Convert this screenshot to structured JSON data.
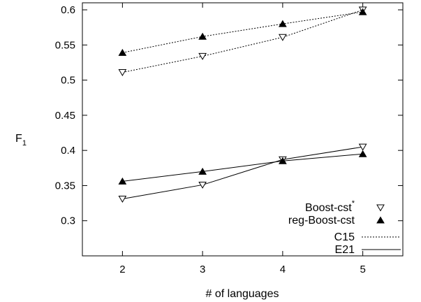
{
  "chart_data": {
    "type": "line",
    "xlabel": "# of languages",
    "ylabel": "F",
    "ylabel_subscript": "1",
    "xlim": [
      1.5,
      5.5
    ],
    "ylim": [
      0.25,
      0.61
    ],
    "x_ticks": [
      2,
      3,
      4,
      5
    ],
    "y_ticks": [
      0.3,
      0.35,
      0.4,
      0.45,
      0.5,
      0.55,
      0.6
    ],
    "y_tick_labels": [
      "0.3",
      "0.35",
      "0.4",
      "0.45",
      "0.5",
      "0.55",
      "0.6"
    ],
    "grid": false,
    "legend_position": "bottom-right",
    "legend": {
      "markers": [
        {
          "label": "Boost-cst",
          "superscript": "*",
          "marker": "triangle-down-open"
        },
        {
          "label": "reg-Boost-cst",
          "superscript": "",
          "marker": "triangle-up-filled"
        }
      ],
      "lines": [
        {
          "label": "C15",
          "line_style": "dotted"
        },
        {
          "label": "E21",
          "line_style": "solid"
        }
      ]
    },
    "series": [
      {
        "group": "C15",
        "marker": "triangle-down-open",
        "line_style": "dotted",
        "x": [
          2,
          3,
          4,
          5
        ],
        "y": [
          0.511,
          0.534,
          0.561,
          0.6
        ]
      },
      {
        "group": "C15",
        "marker": "triangle-up-filled",
        "line_style": "dotted",
        "x": [
          2,
          3,
          4,
          5
        ],
        "y": [
          0.539,
          0.562,
          0.58,
          0.597
        ]
      },
      {
        "group": "E21",
        "marker": "triangle-down-open",
        "line_style": "solid",
        "x": [
          2,
          3,
          4,
          5
        ],
        "y": [
          0.331,
          0.351,
          0.387,
          0.405
        ]
      },
      {
        "group": "E21",
        "marker": "triangle-up-filled",
        "line_style": "solid",
        "x": [
          2,
          3,
          4,
          5
        ],
        "y": [
          0.356,
          0.37,
          0.385,
          0.395
        ]
      }
    ]
  }
}
